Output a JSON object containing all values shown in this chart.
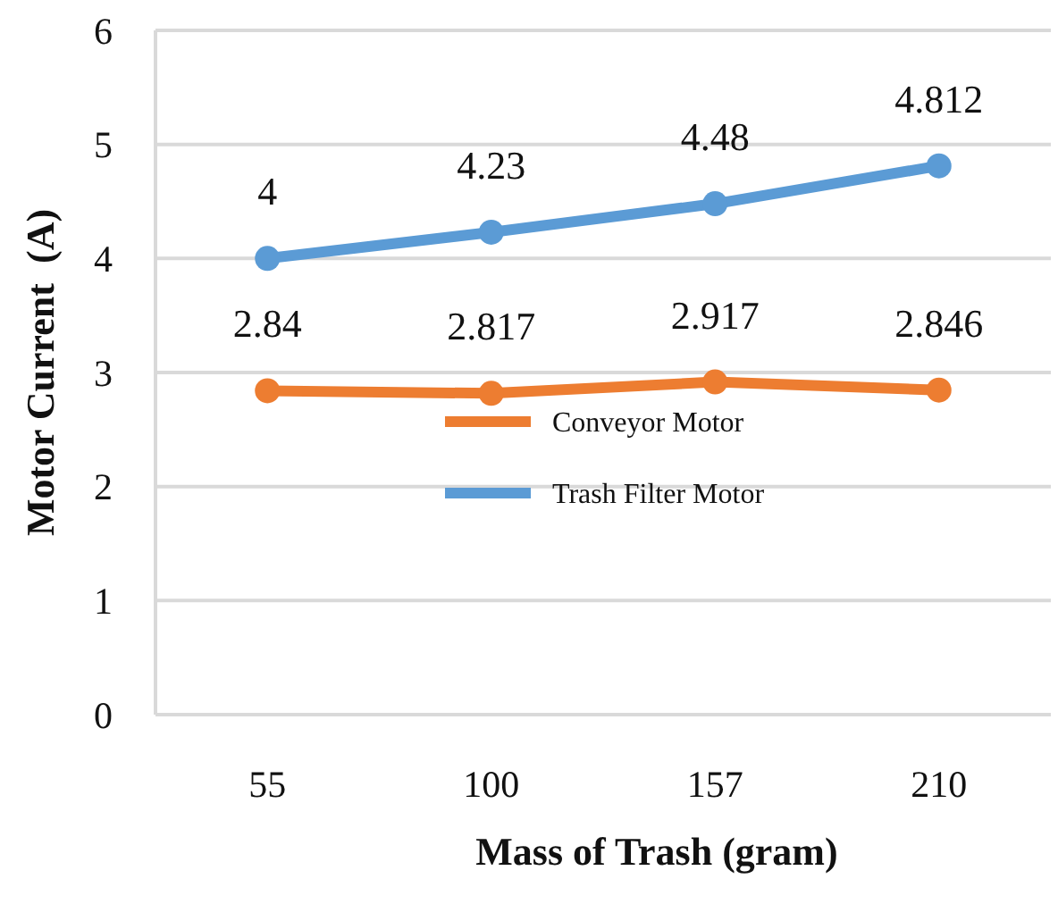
{
  "chart_data": {
    "type": "line",
    "xlabel": "Mass of Trash (gram)",
    "ylabel": "Motor Current  (A)",
    "categories": [
      "55",
      "100",
      "157",
      "210"
    ],
    "series": [
      {
        "name": "Conveyor Motor",
        "color": "#ed7d31",
        "values": [
          2.84,
          2.817,
          2.917,
          2.846
        ]
      },
      {
        "name": "Trash Filter Motor",
        "color": "#5b9bd5",
        "values": [
          4,
          4.23,
          4.48,
          4.812
        ]
      }
    ],
    "ylim": [
      0,
      6
    ],
    "yticks": [
      0,
      1,
      2,
      3,
      4,
      5,
      6
    ],
    "grid": "y",
    "legend": "center",
    "marker": "circle",
    "line_style": "solid",
    "data_labels": true
  }
}
